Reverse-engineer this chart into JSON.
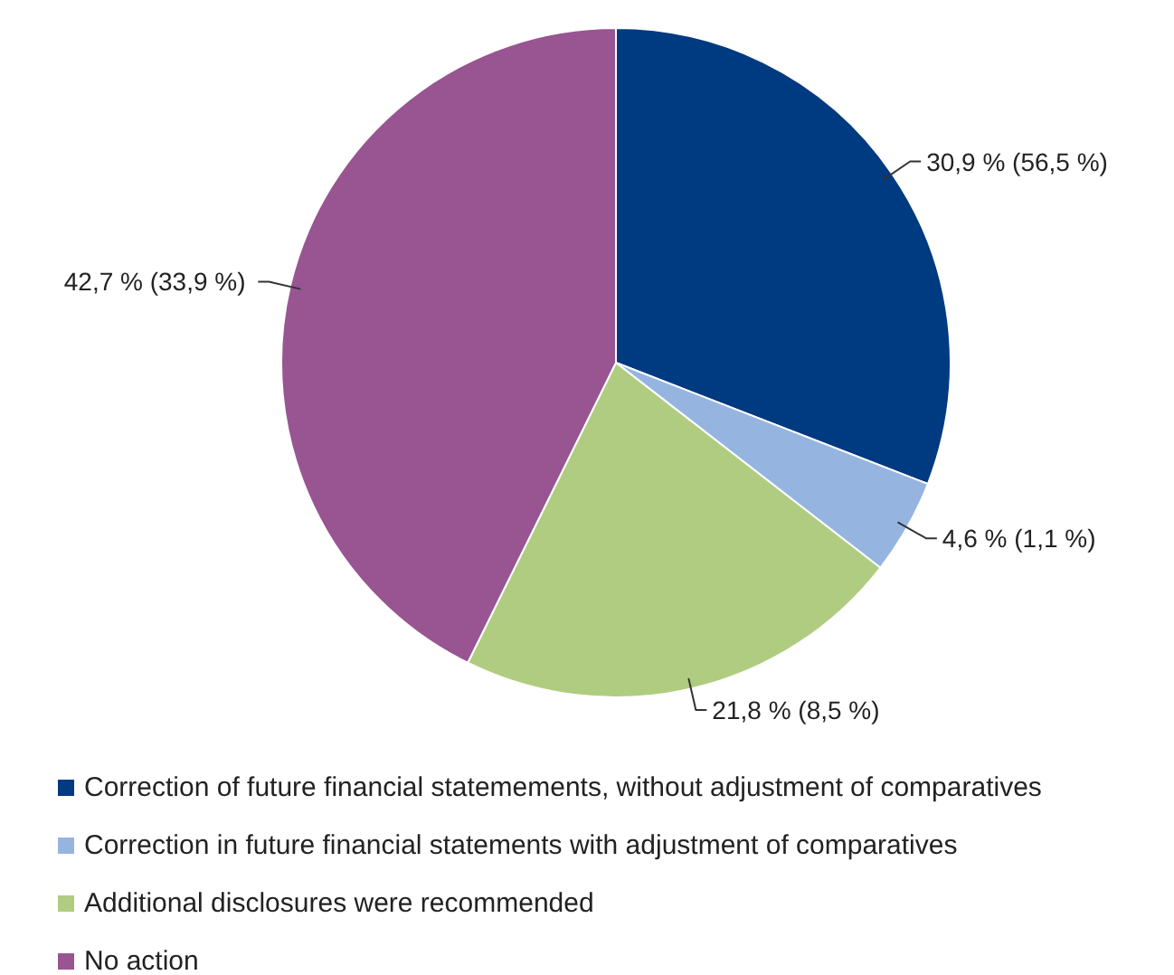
{
  "chart_data": {
    "type": "pie",
    "categories": [
      "Correction of future financial statemements, without adjustment of comparatives",
      "Correction in future financial statements with adjustment of comparatives",
      "Additional disclosures were recommended",
      "No action"
    ],
    "values": [
      30.9,
      4.6,
      21.8,
      42.7
    ],
    "colors": [
      "#003a80",
      "#95b5e0",
      "#b0cc80",
      "#985592"
    ],
    "value_labels": [
      "30,9 % (56,5 %)",
      "4,6 % (1,1 %)",
      "21,8 % (8,5 %)",
      "42,7 %  (33,9 %)"
    ],
    "legend": "bottom"
  }
}
